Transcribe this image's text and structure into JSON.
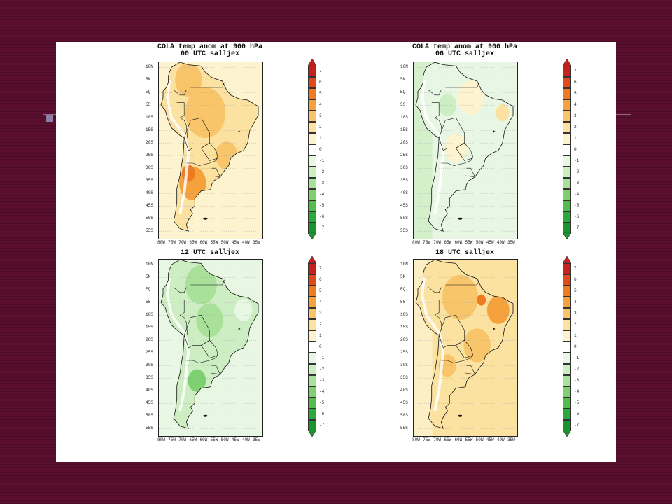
{
  "panels": [
    {
      "id": "p00",
      "title_line1": "COLA temp anom at 900 hPa",
      "title_line2": "00 UTC salljex",
      "scheme": "warm_west"
    },
    {
      "id": "p06",
      "title_line1": "COLA temp anom at 900 hPa",
      "title_line2": "06 UTC salljex",
      "scheme": "cool"
    },
    {
      "id": "p12",
      "title_line1": "",
      "title_line2": "12 UTC salljex",
      "scheme": "green"
    },
    {
      "id": "p18",
      "title_line1": "",
      "title_line2": "18 UTC salljex",
      "scheme": "warm"
    }
  ],
  "lat_labels": [
    "10N",
    "5N",
    "EQ",
    "5S",
    "10S",
    "15S",
    "20S",
    "25S",
    "30S",
    "35S",
    "40S",
    "45S",
    "50S",
    "55S"
  ],
  "lon_labels_top": [
    "80W",
    "75W",
    "70W",
    "65W",
    "60W",
    "55W",
    "50W",
    "45W",
    "40W",
    "35W"
  ],
  "lon_labels_alt": [
    "80W",
    "75W",
    "70W",
    "65W",
    "60W",
    "55W",
    "50W",
    "45W",
    "40W",
    "35W"
  ],
  "colorbar": {
    "levels": [
      "7",
      "6",
      "5",
      "4",
      "3",
      "2",
      "1",
      "0",
      "-1",
      "-2",
      "-3",
      "-4",
      "-5",
      "-6",
      "-7"
    ],
    "colors": [
      "#c8201c",
      "#e04a1c",
      "#ef7a22",
      "#f5a23c",
      "#f8c56a",
      "#fbe2a0",
      "#fdf3cf",
      "#ffffff",
      "#e8f7e3",
      "#cdeec3",
      "#a9e19a",
      "#7fd070",
      "#53bd4c",
      "#2ea83a",
      "#1a9430"
    ]
  }
}
